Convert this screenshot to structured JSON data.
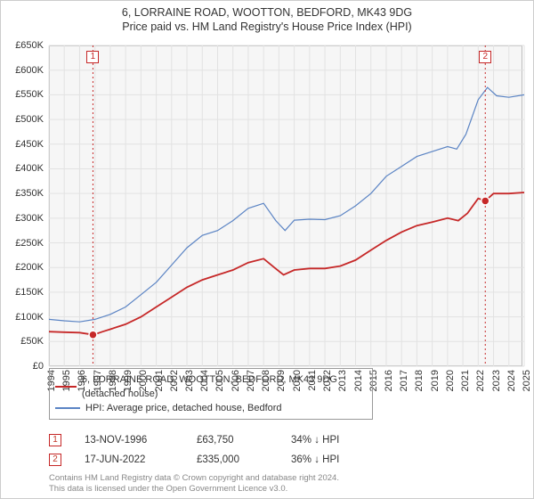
{
  "title_line1": "6, LORRAINE ROAD, WOOTTON, BEDFORD, MK43 9DG",
  "title_line2": "Price paid vs. HM Land Registry's House Price Index (HPI)",
  "chart": {
    "type": "line",
    "background_color": "#f6f6f6",
    "grid_color": "#e2e2e2",
    "border_color": "#bbbbbb",
    "x_min_year": 1994,
    "x_max_year": 2025,
    "x_tick_step": 1,
    "y_min": 0,
    "y_max": 650000,
    "y_tick_step": 50000,
    "y_tick_labels": [
      "£0",
      "£50K",
      "£100K",
      "£150K",
      "£200K",
      "£250K",
      "£300K",
      "£350K",
      "£400K",
      "£450K",
      "£500K",
      "£550K",
      "£600K",
      "£650K"
    ],
    "x_ticks": [
      1994,
      1995,
      1996,
      1997,
      1998,
      1999,
      2000,
      2001,
      2002,
      2003,
      2004,
      2005,
      2006,
      2007,
      2008,
      2009,
      2010,
      2011,
      2012,
      2013,
      2014,
      2015,
      2016,
      2017,
      2018,
      2019,
      2020,
      2021,
      2022,
      2023,
      2024,
      2025
    ],
    "series_price": {
      "label": "6, LORRAINE ROAD, WOOTTON, BEDFORD, MK43 9DG (detached house)",
      "color": "#c62828",
      "line_width": 1.8,
      "points": [
        [
          1994.0,
          70000
        ],
        [
          1995.0,
          69000
        ],
        [
          1996.0,
          68000
        ],
        [
          1996.9,
          63750
        ],
        [
          1997.5,
          70000
        ],
        [
          1998.0,
          75000
        ],
        [
          1999.0,
          85000
        ],
        [
          2000.0,
          100000
        ],
        [
          2001.0,
          120000
        ],
        [
          2002.0,
          140000
        ],
        [
          2003.0,
          160000
        ],
        [
          2004.0,
          175000
        ],
        [
          2005.0,
          185000
        ],
        [
          2006.0,
          195000
        ],
        [
          2007.0,
          210000
        ],
        [
          2008.0,
          218000
        ],
        [
          2008.7,
          200000
        ],
        [
          2009.3,
          185000
        ],
        [
          2010.0,
          195000
        ],
        [
          2011.0,
          198000
        ],
        [
          2012.0,
          198000
        ],
        [
          2013.0,
          203000
        ],
        [
          2014.0,
          215000
        ],
        [
          2015.0,
          235000
        ],
        [
          2016.0,
          255000
        ],
        [
          2017.0,
          272000
        ],
        [
          2018.0,
          285000
        ],
        [
          2019.0,
          292000
        ],
        [
          2020.0,
          300000
        ],
        [
          2020.7,
          295000
        ],
        [
          2021.3,
          310000
        ],
        [
          2022.0,
          340000
        ],
        [
          2022.46,
          335000
        ],
        [
          2023.0,
          350000
        ],
        [
          2024.0,
          350000
        ],
        [
          2025.0,
          352000
        ]
      ]
    },
    "series_hpi": {
      "label": "HPI: Average price, detached house, Bedford",
      "color": "#5b84c4",
      "line_width": 1.2,
      "points": [
        [
          1994.0,
          95000
        ],
        [
          1995.0,
          92000
        ],
        [
          1996.0,
          90000
        ],
        [
          1997.0,
          95000
        ],
        [
          1998.0,
          105000
        ],
        [
          1999.0,
          120000
        ],
        [
          2000.0,
          145000
        ],
        [
          2001.0,
          170000
        ],
        [
          2002.0,
          205000
        ],
        [
          2003.0,
          240000
        ],
        [
          2004.0,
          265000
        ],
        [
          2005.0,
          275000
        ],
        [
          2006.0,
          295000
        ],
        [
          2007.0,
          320000
        ],
        [
          2008.0,
          330000
        ],
        [
          2008.8,
          295000
        ],
        [
          2009.4,
          275000
        ],
        [
          2010.0,
          296000
        ],
        [
          2011.0,
          298000
        ],
        [
          2012.0,
          297000
        ],
        [
          2013.0,
          305000
        ],
        [
          2014.0,
          325000
        ],
        [
          2015.0,
          350000
        ],
        [
          2016.0,
          385000
        ],
        [
          2017.0,
          405000
        ],
        [
          2018.0,
          425000
        ],
        [
          2019.0,
          435000
        ],
        [
          2020.0,
          445000
        ],
        [
          2020.6,
          440000
        ],
        [
          2021.2,
          470000
        ],
        [
          2022.0,
          540000
        ],
        [
          2022.6,
          565000
        ],
        [
          2023.2,
          548000
        ],
        [
          2024.0,
          545000
        ],
        [
          2025.0,
          550000
        ]
      ]
    },
    "markers": [
      {
        "idx_label": "1",
        "x": 1996.87,
        "y": 63750,
        "color": "#c62828",
        "flag_top": true
      },
      {
        "idx_label": "2",
        "x": 2022.46,
        "y": 335000,
        "color": "#c62828",
        "flag_top": true
      }
    ]
  },
  "legend": {
    "rows": [
      {
        "color": "#c62828",
        "text": "6, LORRAINE ROAD, WOOTTON, BEDFORD, MK43 9DG (detached house)"
      },
      {
        "color": "#5b84c4",
        "text": "HPI: Average price, detached house, Bedford"
      }
    ]
  },
  "sales": [
    {
      "idx": "1",
      "date": "13-NOV-1996",
      "price": "£63,750",
      "pct": "34%",
      "arrow": "↓",
      "suffix": "HPI"
    },
    {
      "idx": "2",
      "date": "17-JUN-2022",
      "price": "£335,000",
      "pct": "36%",
      "arrow": "↓",
      "suffix": "HPI"
    }
  ],
  "footer_line1": "Contains HM Land Registry data © Crown copyright and database right 2024.",
  "footer_line2": "This data is licensed under the Open Government Licence v3.0."
}
